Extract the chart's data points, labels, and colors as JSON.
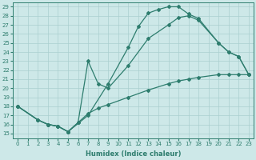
{
  "xlabel": "Humidex (Indice chaleur)",
  "xlim": [
    -0.5,
    23.5
  ],
  "ylim": [
    14.5,
    29.5
  ],
  "xticks": [
    0,
    1,
    2,
    3,
    4,
    5,
    6,
    7,
    8,
    9,
    10,
    11,
    12,
    13,
    14,
    15,
    16,
    17,
    18,
    19,
    20,
    21,
    22,
    23
  ],
  "yticks": [
    15,
    16,
    17,
    18,
    19,
    20,
    21,
    22,
    23,
    24,
    25,
    26,
    27,
    28,
    29
  ],
  "bg_color": "#cde8e8",
  "line_color": "#2e7d6e",
  "grid_color": "#aacfcf",
  "curves": [
    {
      "x": [
        0,
        2,
        3,
        4,
        5,
        7,
        9,
        11,
        12,
        13,
        14,
        15,
        16,
        17,
        18,
        20,
        21,
        22,
        23
      ],
      "y": [
        18,
        16.5,
        16.0,
        15.8,
        15.2,
        17.0,
        20.5,
        24.5,
        26.8,
        28.3,
        28.7,
        29.0,
        29.0,
        28.2,
        27.7,
        25.0,
        24.0,
        23.5,
        21.5
      ]
    },
    {
      "x": [
        0,
        2,
        3,
        4,
        5,
        6,
        7,
        8,
        9,
        11,
        13,
        15,
        16,
        17,
        18,
        20,
        21,
        22,
        23
      ],
      "y": [
        18,
        16.5,
        16.0,
        15.8,
        15.2,
        16.2,
        23.0,
        20.5,
        20.0,
        22.5,
        25.5,
        27.0,
        27.8,
        28.0,
        27.5,
        25.0,
        24.0,
        23.5,
        21.5
      ]
    },
    {
      "x": [
        0,
        2,
        3,
        4,
        5,
        6,
        7,
        8,
        9,
        11,
        13,
        15,
        16,
        17,
        18,
        20,
        21,
        22,
        23
      ],
      "y": [
        18,
        16.5,
        16.0,
        15.8,
        15.2,
        16.2,
        17.2,
        17.8,
        18.2,
        19.0,
        19.8,
        20.5,
        20.8,
        21.0,
        21.2,
        21.5,
        21.5,
        21.5,
        21.5
      ]
    }
  ]
}
